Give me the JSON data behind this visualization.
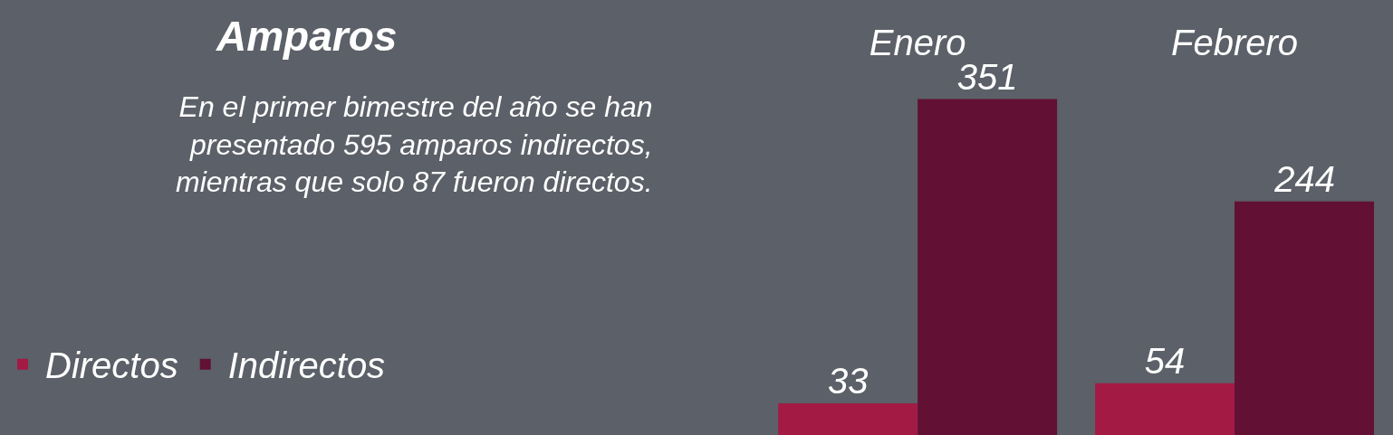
{
  "chart_data": {
    "type": "bar",
    "title": "Amparos",
    "subtitle": "En el primer bimestre del año se han presentado 595 amparos indirectos, mientras que solo 87 fueron directos.",
    "categories": [
      "Enero",
      "Febrero"
    ],
    "series": [
      {
        "name": "Directos",
        "color": "#a31a45",
        "values": [
          33,
          54
        ]
      },
      {
        "name": "Indirectos",
        "color": "#621034",
        "values": [
          351,
          244
        ]
      }
    ],
    "data_labels": true,
    "legend": "left",
    "grid": false,
    "tick_labels": "x"
  }
}
